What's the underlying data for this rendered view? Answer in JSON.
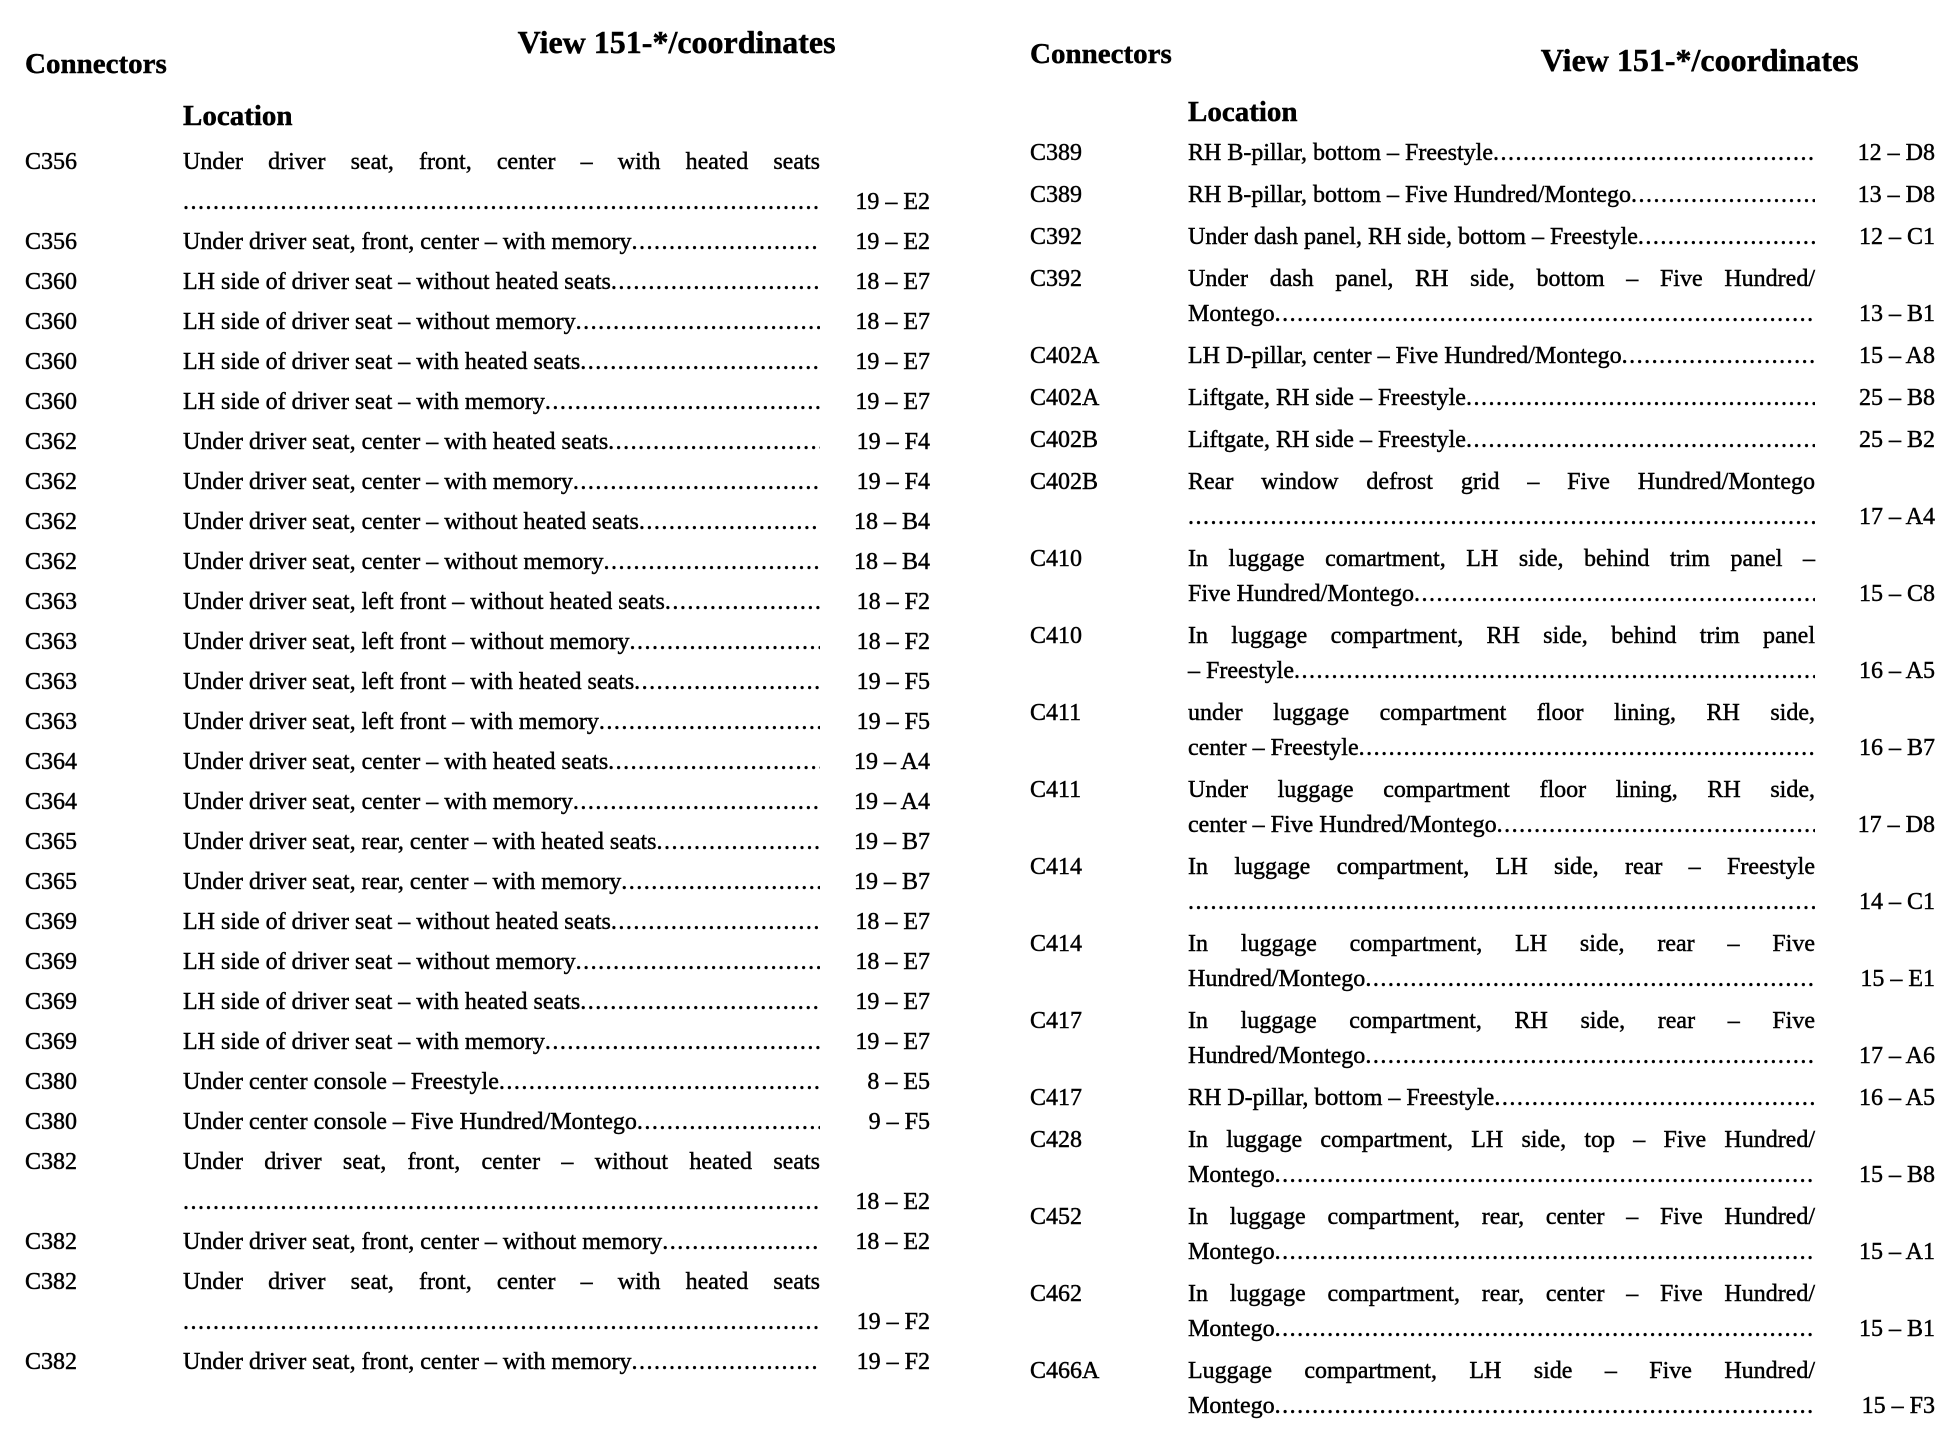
{
  "panels": [
    {
      "connectors_label": "Connectors",
      "view_title": "View 151-*/coordinates",
      "location_label": "Location",
      "rows": [
        {
          "id": "C356",
          "coord": "19 – E2",
          "lines": [
            {
              "text": "Under driver seat, front, center – with heated seats"
            },
            {
              "dots": true
            }
          ]
        },
        {
          "id": "C356",
          "coord": "19 – E2",
          "lines": [
            {
              "text": "Under driver seat, front, center – with memory",
              "dots": true
            }
          ]
        },
        {
          "id": "C360",
          "coord": "18 – E7",
          "lines": [
            {
              "text": "LH side of driver seat – without heated seats",
              "dots": true
            }
          ]
        },
        {
          "id": "C360",
          "coord": "18 – E7",
          "lines": [
            {
              "text": "LH side of driver seat – without memory",
              "dots": true
            }
          ]
        },
        {
          "id": "C360",
          "coord": "19 – E7",
          "lines": [
            {
              "text": "LH side of driver seat – with heated seats",
              "dots": true
            }
          ]
        },
        {
          "id": "C360",
          "coord": "19 – E7",
          "lines": [
            {
              "text": "LH side of driver seat – with memory",
              "dots": true
            }
          ]
        },
        {
          "id": "C362",
          "coord": "19 – F4",
          "lines": [
            {
              "text": "Under driver seat, center – with heated seats",
              "dots": true
            }
          ]
        },
        {
          "id": "C362",
          "coord": "19 – F4",
          "lines": [
            {
              "text": "Under driver seat, center – with memory",
              "dots": true
            }
          ]
        },
        {
          "id": "C362",
          "coord": "18 – B4",
          "lines": [
            {
              "text": "Under driver seat, center – without heated seats",
              "dots": true
            }
          ]
        },
        {
          "id": "C362",
          "coord": "18 – B4",
          "lines": [
            {
              "text": "Under driver seat, center – without memory",
              "dots": true
            }
          ]
        },
        {
          "id": "C363",
          "coord": "18 – F2",
          "lines": [
            {
              "text": "Under driver seat, left front – without heated seats",
              "dots": true
            }
          ]
        },
        {
          "id": "C363",
          "coord": "18 – F2",
          "lines": [
            {
              "text": "Under driver seat, left front – without memory",
              "dots": true
            }
          ]
        },
        {
          "id": "C363",
          "coord": "19 – F5",
          "lines": [
            {
              "text": "Under driver seat, left front – with heated seats",
              "dots": true
            }
          ]
        },
        {
          "id": "C363",
          "coord": "19 – F5",
          "lines": [
            {
              "text": "Under driver seat, left front – with memory",
              "dots": true
            }
          ]
        },
        {
          "id": "C364",
          "coord": "19 – A4",
          "lines": [
            {
              "text": "Under driver seat, center – with heated seats",
              "dots": true
            }
          ]
        },
        {
          "id": "C364",
          "coord": "19 – A4",
          "lines": [
            {
              "text": "Under driver seat, center – with memory",
              "dots": true
            }
          ]
        },
        {
          "id": "C365",
          "coord": "19 – B7",
          "lines": [
            {
              "text": "Under driver seat, rear, center – with heated seats",
              "dots": true
            }
          ]
        },
        {
          "id": "C365",
          "coord": "19 – B7",
          "lines": [
            {
              "text": "Under driver seat, rear, center – with memory",
              "dots": true
            }
          ]
        },
        {
          "id": "C369",
          "coord": "18 – E7",
          "lines": [
            {
              "text": "LH side of driver seat – without heated seats",
              "dots": true
            }
          ]
        },
        {
          "id": "C369",
          "coord": "18 – E7",
          "lines": [
            {
              "text": "LH side of driver seat – without memory",
              "dots": true
            }
          ]
        },
        {
          "id": "C369",
          "coord": "19 – E7",
          "lines": [
            {
              "text": "LH side of driver seat – with heated seats",
              "dots": true
            }
          ]
        },
        {
          "id": "C369",
          "coord": "19 – E7",
          "lines": [
            {
              "text": "LH side of driver seat – with memory",
              "dots": true
            }
          ]
        },
        {
          "id": "C380",
          "coord": "8 – E5",
          "lines": [
            {
              "text": "Under center console – Freestyle",
              "dots": true
            }
          ]
        },
        {
          "id": "C380",
          "coord": "9 – F5",
          "lines": [
            {
              "text": "Under center console – Five Hundred/Montego",
              "dots": true
            }
          ]
        },
        {
          "id": "C382",
          "coord": "18 – E2",
          "lines": [
            {
              "text": "Under driver seat, front, center – without heated seats"
            },
            {
              "dots": true
            }
          ]
        },
        {
          "id": "C382",
          "coord": "18 – E2",
          "lines": [
            {
              "text": "Under driver seat, front, center – without memory",
              "dots": true
            }
          ]
        },
        {
          "id": "C382",
          "coord": "19 – F2",
          "lines": [
            {
              "text": "Under driver seat, front, center – with heated seats"
            },
            {
              "dots": true
            }
          ]
        },
        {
          "id": "C382",
          "coord": "19 – F2",
          "lines": [
            {
              "text": "Under driver seat, front, center – with memory",
              "dots": true
            }
          ]
        }
      ]
    },
    {
      "connectors_label": "Connectors",
      "view_title": "View 151-*/coordinates",
      "location_label": "Location",
      "rows": [
        {
          "id": "C389",
          "coord": "12 – D8",
          "lines": [
            {
              "text": "RH B-pillar, bottom – Freestyle",
              "dots": true
            }
          ]
        },
        {
          "id": "C389",
          "coord": "13 – D8",
          "lines": [
            {
              "text": "RH B-pillar, bottom – Five Hundred/Montego",
              "dots": true
            }
          ]
        },
        {
          "id": "C392",
          "coord": "12 – C1",
          "lines": [
            {
              "text": "Under dash panel, RH side, bottom – Freestyle",
              "dots": true
            }
          ]
        },
        {
          "id": "C392",
          "coord": "13 – B1",
          "lines": [
            {
              "text": "Under dash panel, RH side, bottom – Five Hundred/"
            },
            {
              "text": "Montego",
              "dots": true
            }
          ]
        },
        {
          "id": "C402A",
          "coord": "15 – A8",
          "lines": [
            {
              "text": "LH D-pillar, center – Five Hundred/Montego",
              "dots": true
            }
          ]
        },
        {
          "id": "C402A",
          "coord": "25 – B8",
          "lines": [
            {
              "text": "Liftgate, RH side – Freestyle",
              "dots": true
            }
          ]
        },
        {
          "id": "C402B",
          "coord": "25 – B2",
          "lines": [
            {
              "text": "Liftgate, RH side – Freestyle",
              "dots": true
            }
          ]
        },
        {
          "id": "C402B",
          "coord": "17 – A4",
          "lines": [
            {
              "text": "Rear window defrost grid – Five Hundred/Montego"
            },
            {
              "dots": true
            }
          ]
        },
        {
          "id": "C410",
          "coord": "15 – C8",
          "lines": [
            {
              "text": "In luggage comartment, LH side, behind trim panel –"
            },
            {
              "text": "Five Hundred/Montego",
              "dots": true
            }
          ]
        },
        {
          "id": "C410",
          "coord": "16 – A5",
          "lines": [
            {
              "text": "In luggage compartment, RH side, behind trim panel"
            },
            {
              "text": "– Freestyle",
              "dots": true
            }
          ]
        },
        {
          "id": "C411",
          "coord": "16 – B7",
          "lines": [
            {
              "text": "under luggage compartment floor lining, RH side,"
            },
            {
              "text": "center – Freestyle",
              "dots": true
            }
          ]
        },
        {
          "id": "C411",
          "coord": "17 – D8",
          "lines": [
            {
              "text": "Under luggage compartment floor lining, RH side,"
            },
            {
              "text": "center – Five Hundred/Montego",
              "dots": true
            }
          ]
        },
        {
          "id": "C414",
          "coord": "14 – C1",
          "lines": [
            {
              "text": "In luggage compartment, LH side, rear – Freestyle"
            },
            {
              "dots": true
            }
          ]
        },
        {
          "id": "C414",
          "coord": "15 – E1",
          "lines": [
            {
              "text": "In luggage compartment, LH side, rear – Five"
            },
            {
              "text": "Hundred/Montego",
              "dots": true
            }
          ]
        },
        {
          "id": "C417",
          "coord": "17 – A6",
          "lines": [
            {
              "text": "In luggage compartment, RH side, rear – Five"
            },
            {
              "text": "Hundred/Montego",
              "dots": true
            }
          ]
        },
        {
          "id": "C417",
          "coord": "16 – A5",
          "lines": [
            {
              "text": "RH D-pillar, bottom – Freestyle",
              "dots": true
            }
          ]
        },
        {
          "id": "C428",
          "coord": "15 – B8",
          "lines": [
            {
              "text": "In luggage compartment, LH side, top – Five Hundred/"
            },
            {
              "text": "Montego",
              "dots": true
            }
          ]
        },
        {
          "id": "C452",
          "coord": "15 – A1",
          "lines": [
            {
              "text": "In luggage compartment, rear, center – Five Hundred/"
            },
            {
              "text": "Montego",
              "dots": true
            }
          ]
        },
        {
          "id": "C462",
          "coord": "15 – B1",
          "lines": [
            {
              "text": "In luggage compartment, rear, center – Five Hundred/"
            },
            {
              "text": "Montego",
              "dots": true
            }
          ]
        },
        {
          "id": "C466A",
          "coord": "15 – F3",
          "lines": [
            {
              "text": "Luggage compartment, LH side – Five Hundred/"
            },
            {
              "text": "Montego",
              "dots": true
            }
          ]
        }
      ]
    }
  ]
}
